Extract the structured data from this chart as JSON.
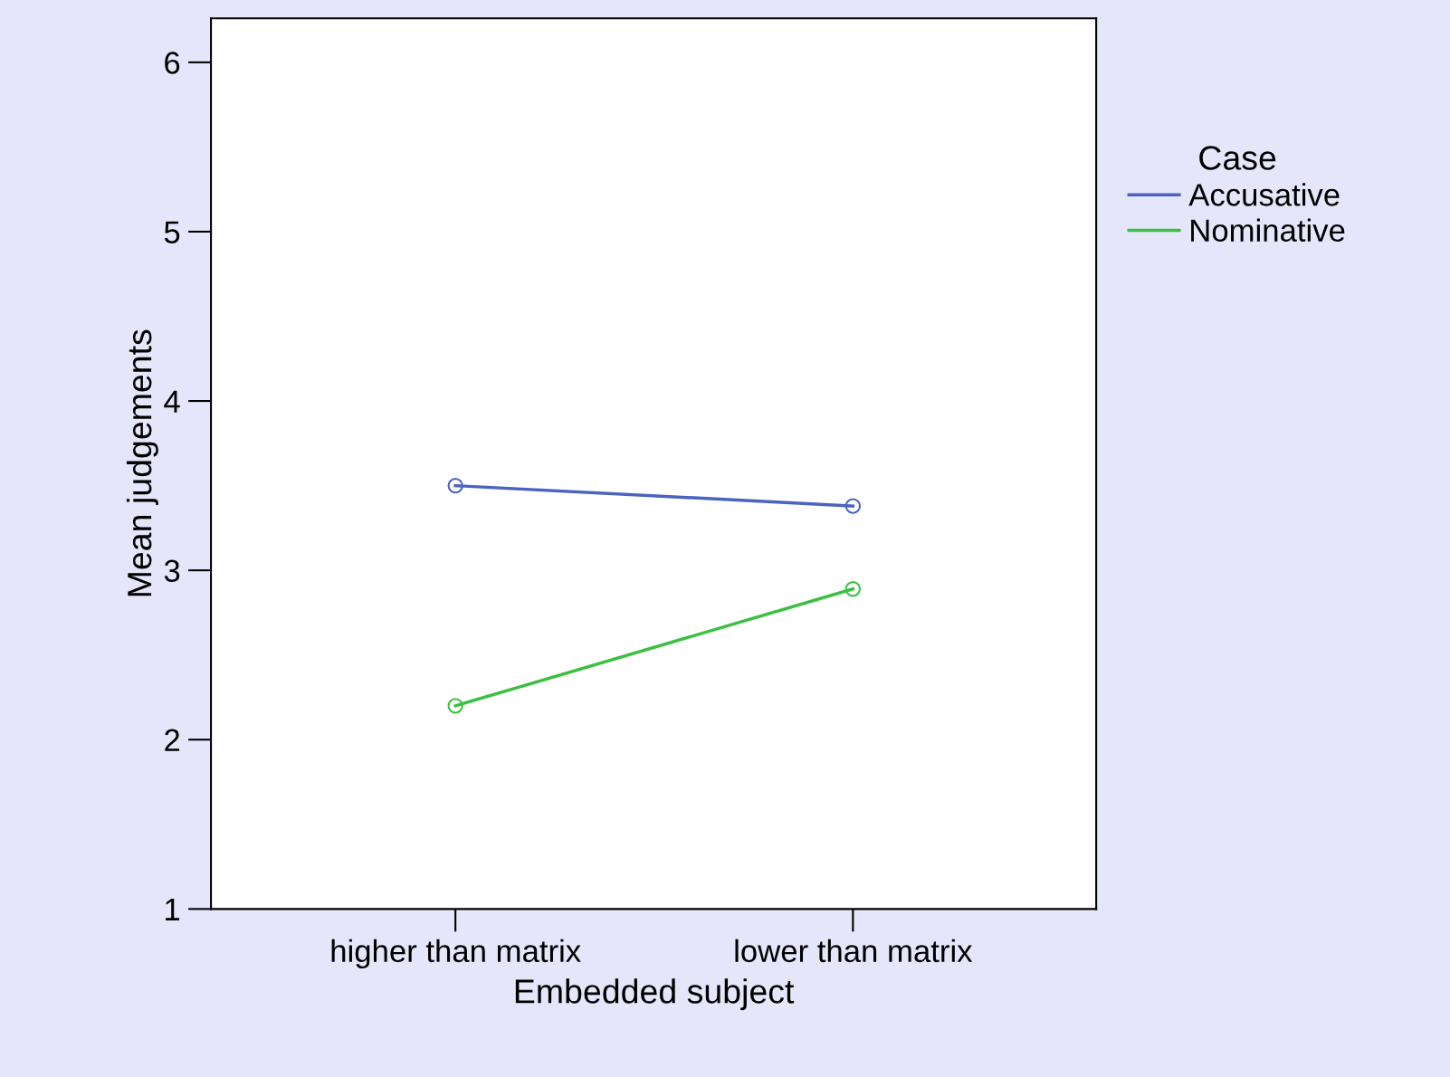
{
  "chart_data": {
    "type": "line",
    "xlabel": "Embedded subject",
    "ylabel": "Mean judgements",
    "legend_title": "Case",
    "categories": [
      "higher than matrix",
      "lower than matrix"
    ],
    "series": [
      {
        "name": "Accusative",
        "color": "#4a62c0",
        "values": [
          3.5,
          3.38
        ]
      },
      {
        "name": "Nominative",
        "color": "#3cc043",
        "values": [
          2.2,
          2.89
        ]
      }
    ],
    "ylim": [
      1,
      6.26
    ],
    "yticks": [
      1,
      2,
      3,
      4,
      5,
      6
    ],
    "marker": "circle",
    "line_style": "solid",
    "grid": false,
    "legend": "right"
  }
}
